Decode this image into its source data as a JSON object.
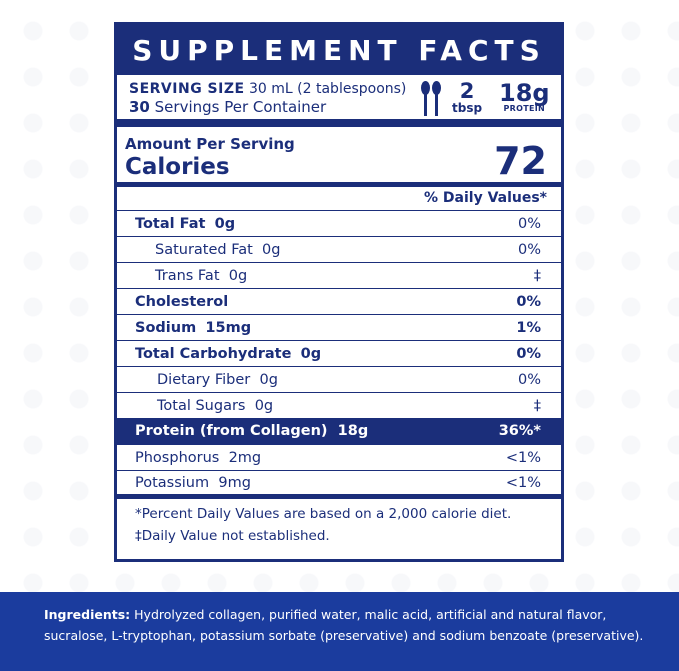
{
  "header": {
    "title": "SUPPLEMENT FACTS"
  },
  "serving": {
    "size_label": "SERVING SIZE",
    "size_value": "30 mL (2 tablespoons)",
    "servings_count": "30",
    "servings_text": "Servings Per Container",
    "tbsp_value": "2",
    "tbsp_unit": "tbsp",
    "protein_value": "18g",
    "protein_unit": "PROTEIN"
  },
  "calories": {
    "amount_label": "Amount Per Serving",
    "label": "Calories",
    "value": "72"
  },
  "daily_values_header": "% Daily Values*",
  "nutrients": [
    {
      "name": "Total Fat",
      "amount": "0g",
      "dv": "0%"
    },
    {
      "name": "Saturated Fat",
      "amount": "0g",
      "dv": "0%"
    },
    {
      "name": "Trans Fat",
      "amount": "0g",
      "dv": "‡"
    },
    {
      "name": "Cholesterol",
      "amount": "",
      "dv": "0%"
    },
    {
      "name": "Sodium",
      "amount": "15mg",
      "dv": "1%"
    },
    {
      "name": "Total Carbohydrate",
      "amount": "0g",
      "dv": "0%"
    },
    {
      "name": "Dietary Fiber",
      "amount": "0g",
      "dv": "0%"
    },
    {
      "name": "Total Sugars",
      "amount": "0g",
      "dv": "‡"
    },
    {
      "name": "Protein (from Collagen)",
      "amount": "18g",
      "dv": "36%*"
    },
    {
      "name": "Phosphorus",
      "amount": "2mg",
      "dv": "<1%"
    },
    {
      "name": "Potassium",
      "amount": "9mg",
      "dv": "<1%"
    }
  ],
  "footnotes": {
    "dv_note": "*Percent Daily Values are based on a 2,000 calorie diet.",
    "not_established": "‡Daily Value not established."
  },
  "ingredients": {
    "label": "Ingredients:",
    "text": "Hydrolyzed collagen, purified water, malic acid, artificial and natural flavor, sucralose, L-tryptophan, potassium sorbate (preservative) and sodium benzoate (preservative)."
  },
  "colors": {
    "primary": "#1b2e7a",
    "banner": "#1b3c9e"
  }
}
